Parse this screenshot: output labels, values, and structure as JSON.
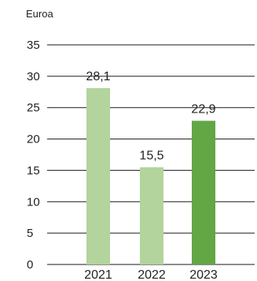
{
  "chart_data": {
    "type": "bar",
    "unit_label": "Euroa",
    "categories": [
      "2021",
      "2022",
      "2023"
    ],
    "values": [
      28.1,
      15.5,
      22.9
    ],
    "value_labels": [
      "28,1",
      "15,5",
      "22,9"
    ],
    "ylim": [
      0,
      35
    ],
    "yticks": [
      0,
      5,
      10,
      15,
      20,
      25,
      30,
      35
    ],
    "grid": true,
    "colors": {
      "bar_default": "#b3d49c",
      "bar_highlight": "#62a645",
      "gridline": "#1a1a1a"
    },
    "highlight_category": "2023"
  }
}
